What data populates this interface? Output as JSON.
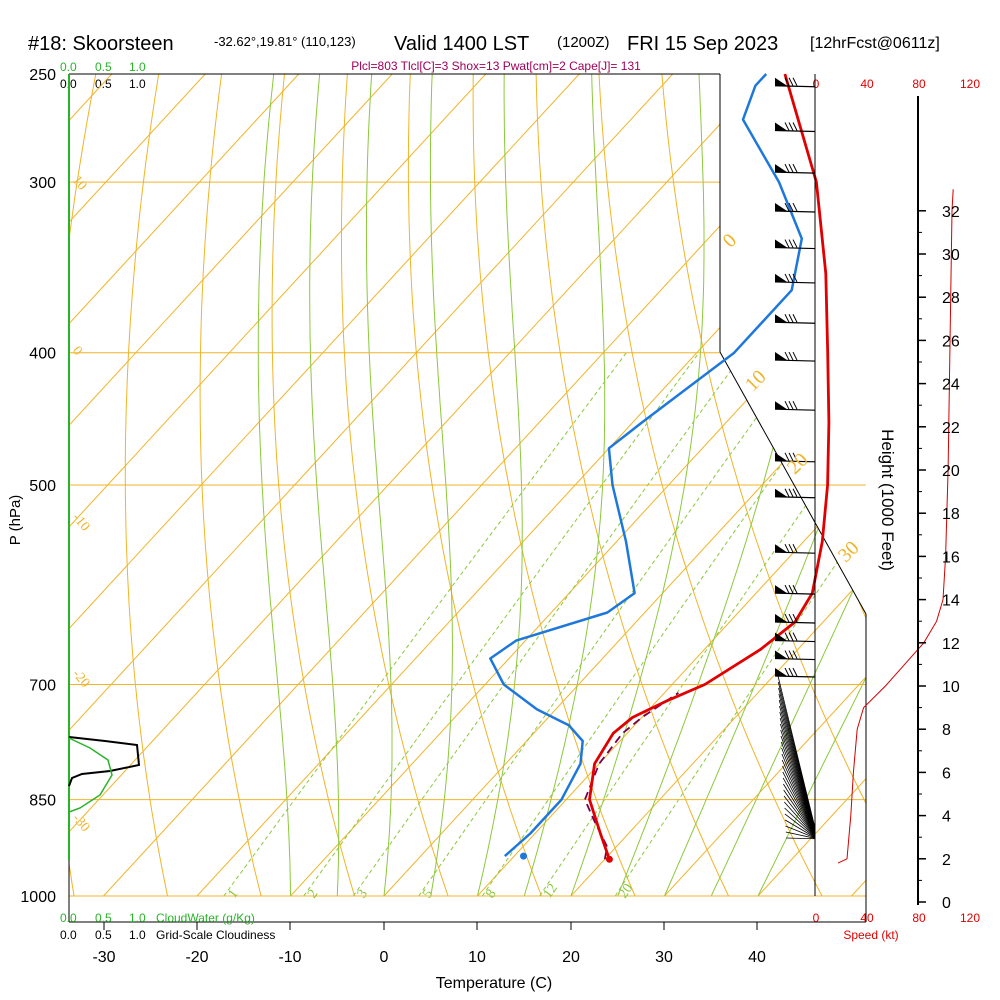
{
  "title": {
    "station": "#18: Skoorsteen",
    "coords": "-32.62°,19.81° (110,123)",
    "valid": "Valid 1400 LST",
    "zulu": "(1200Z)",
    "date": "FRI 15 Sep 2023",
    "fcst": "[12hrFcst@0611z]",
    "indices": "Plcl=803 Tlcl[C]=3 Shox=13 Pwat[cm]=2 Cape[J]= 131"
  },
  "cloud_scale": {
    "top_green": [
      "0.0",
      "0.5",
      "1.0"
    ],
    "top_black": [
      "0.0",
      "0.5",
      "1.0"
    ],
    "bottom_green": [
      "0.0",
      "0.5",
      "1.0"
    ],
    "bottom_black": [
      "0.0",
      "0.5",
      "1.0"
    ],
    "cloudwater_label": "CloudWater (g/Kg)",
    "cloudiness_label": "Grid-Scale Cloudiness"
  },
  "speed_scale": {
    "top": [
      "0",
      "40",
      "80",
      "120"
    ],
    "bottom": [
      "0",
      "40",
      "80",
      "120"
    ],
    "label": "Speed (kt)"
  },
  "colors": {
    "isotherm": "#f0b428",
    "mixing": "#8cc83c",
    "temp": "#e10000",
    "dew": "#1e78dc",
    "parcel": "#780050",
    "cloudwater": "#28b428",
    "speed": "#d20000"
  },
  "chart_data": {
    "type": "skew-t",
    "xlabel": "Temperature (C)",
    "ylabel": "P (hPa)",
    "y2label": "Height (1000 Feet)",
    "x_ticks": [
      "-30",
      "-20",
      "-10",
      "0",
      "10",
      "20",
      "30",
      "40"
    ],
    "x_values": [
      -30,
      -20,
      -10,
      0,
      10,
      20,
      30,
      40
    ],
    "p_ticks": [
      "250",
      "300",
      "400",
      "500",
      "700",
      "850",
      "1000"
    ],
    "p_values": [
      250,
      300,
      400,
      500,
      700,
      850,
      1000
    ],
    "height_ticks": [
      "0",
      "2",
      "4",
      "6",
      "8",
      "10",
      "12",
      "14",
      "16",
      "18",
      "20",
      "22",
      "24",
      "26",
      "28",
      "30",
      "32"
    ],
    "height_values": [
      0,
      2,
      4,
      6,
      8,
      10,
      12,
      14,
      16,
      18,
      20,
      22,
      24,
      26,
      28,
      30,
      32
    ],
    "isotherm_labels": [
      "10",
      "0",
      "-10",
      "-20",
      "-30"
    ],
    "dry_adiabat_labels": [
      "0",
      "10",
      "20",
      "30"
    ],
    "mixing_labels": [
      "1",
      "2",
      "3",
      "5",
      "8",
      "12",
      "20"
    ],
    "temperature": {
      "p": [
        940,
        900,
        850,
        800,
        760,
        740,
        720,
        700,
        660,
        630,
        600,
        550,
        500,
        450,
        400,
        350,
        300,
        250
      ],
      "t": [
        20.5,
        17,
        12.5,
        9.5,
        8.5,
        9,
        11,
        13.5,
        16,
        17,
        16,
        12,
        7,
        1,
        -6,
        -14,
        -24,
        -38
      ]
    },
    "dewpoint": {
      "p": [
        935,
        900,
        850,
        800,
        770,
        750,
        730,
        700,
        670,
        650,
        620,
        600,
        550,
        500,
        470,
        450,
        400,
        360,
        330,
        300,
        270,
        255,
        250
      ],
      "td": [
        9,
        9.5,
        9.5,
        8,
        6,
        3,
        -2,
        -8,
        -12,
        -11,
        -4,
        -3,
        -9,
        -16,
        -20,
        -19,
        -16,
        -16,
        -20,
        -28,
        -38,
        -40,
        -40
      ]
    },
    "parcel": {
      "p": [
        940,
        920,
        880,
        850,
        800,
        760,
        740,
        710
      ],
      "t": [
        20,
        19,
        15,
        12,
        10,
        9.5,
        10,
        11.5
      ]
    },
    "surface_dewpoint": {
      "p": 935,
      "td": 11
    },
    "speed": {
      "h": [
        1.8,
        2,
        4,
        6,
        8,
        9,
        10,
        11,
        12,
        13,
        14,
        16,
        20,
        24,
        28,
        32,
        33
      ],
      "kt": [
        18,
        25,
        28,
        30,
        33,
        38,
        55,
        70,
        85,
        95,
        100,
        102,
        104,
        105,
        106,
        107,
        108
      ]
    }
  }
}
